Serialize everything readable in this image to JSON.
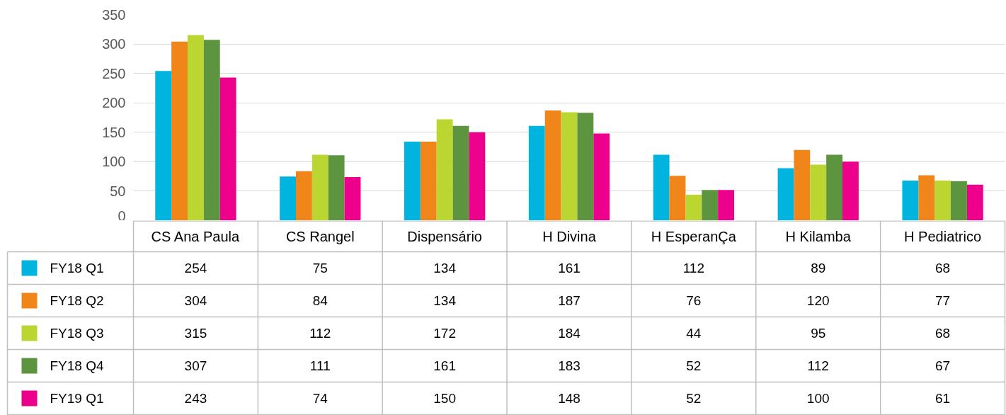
{
  "chart_data": {
    "type": "bar",
    "categories": [
      "CS Ana Paula",
      "CS Rangel",
      "Dispensário",
      "H Divina",
      "H EsperanÇa",
      "H Kilamba",
      "H Pediatrico"
    ],
    "series": [
      {
        "name": "FY18 Q1",
        "color": "#00b4e0",
        "values": [
          254,
          75,
          134,
          161,
          112,
          89,
          68
        ]
      },
      {
        "name": "FY18 Q2",
        "color": "#f08519",
        "values": [
          304,
          84,
          134,
          187,
          76,
          120,
          77
        ]
      },
      {
        "name": "FY18 Q3",
        "color": "#bcd631",
        "values": [
          315,
          112,
          172,
          184,
          44,
          95,
          68
        ]
      },
      {
        "name": "FY18 Q4",
        "color": "#5d9440",
        "values": [
          307,
          111,
          161,
          183,
          52,
          112,
          67
        ]
      },
      {
        "name": "FY19 Q1",
        "color": "#ec008c",
        "values": [
          243,
          74,
          150,
          148,
          52,
          100,
          61
        ]
      }
    ],
    "ylim": [
      0,
      350
    ],
    "yticks": [
      0,
      50,
      100,
      150,
      200,
      250,
      300,
      350
    ],
    "grid": "y",
    "legend": "bottom",
    "data_labels": true
  }
}
